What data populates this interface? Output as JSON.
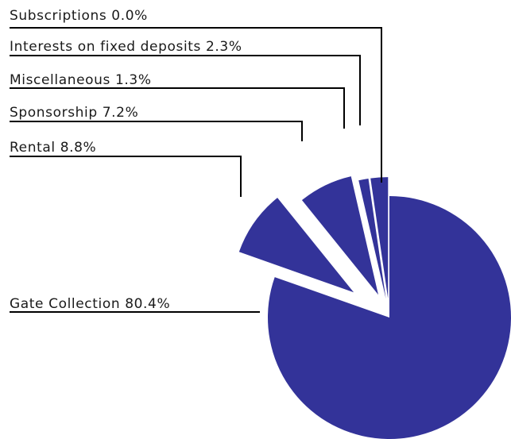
{
  "chart_data": {
    "type": "pie",
    "slices": [
      {
        "label": "Gate Collection",
        "value": 80.4,
        "text": "Gate Collection 80.4%"
      },
      {
        "label": "Rental",
        "value": 8.8,
        "text": "Rental 8.8%"
      },
      {
        "label": "Sponsorship",
        "value": 7.2,
        "text": "Sponsorship 7.2%"
      },
      {
        "label": "Miscellaneous",
        "value": 1.3,
        "text": "Miscellaneous 1.3%"
      },
      {
        "label": "Interests on fixed deposits",
        "value": 2.3,
        "text": "Interests on fixed deposits 2.3%"
      },
      {
        "label": "Subscriptions",
        "value": 0.0,
        "text": "Subscriptions 0.0%"
      }
    ],
    "colors": {
      "slice": "#333399",
      "leader": "#000000"
    }
  }
}
